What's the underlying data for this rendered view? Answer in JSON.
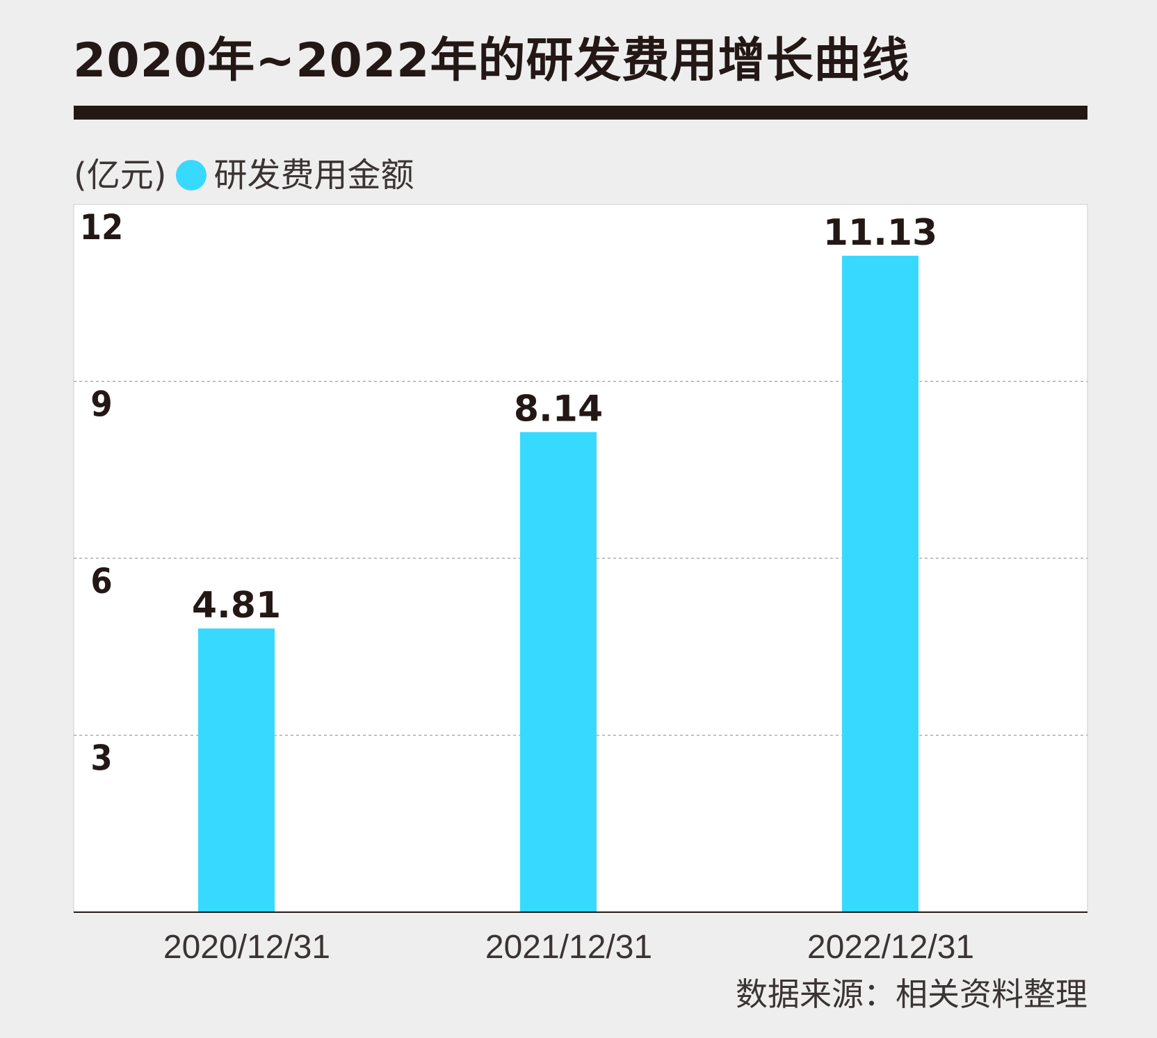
{
  "title": "2020年~2022年的研发费用增长曲线",
  "unit": "(亿元)",
  "legend_label": "研发费用金额",
  "source": "数据来源：相关资料整理",
  "colors": {
    "bar": "#38d9ff",
    "text": "#231815",
    "background": "#efeeee",
    "plot_background": "#ffffff"
  },
  "chart_data": {
    "type": "bar",
    "categories": [
      "2020/12/31",
      "2021/12/31",
      "2022/12/31"
    ],
    "series": [
      {
        "name": "研发费用金额",
        "values": [
          4.81,
          8.14,
          11.13
        ]
      }
    ],
    "value_labels": [
      "4.81",
      "8.14",
      "11.13"
    ],
    "yticks": [
      3,
      6,
      9,
      12
    ],
    "ylim": [
      0,
      12
    ],
    "grid": true,
    "legend_position": "top-left"
  }
}
